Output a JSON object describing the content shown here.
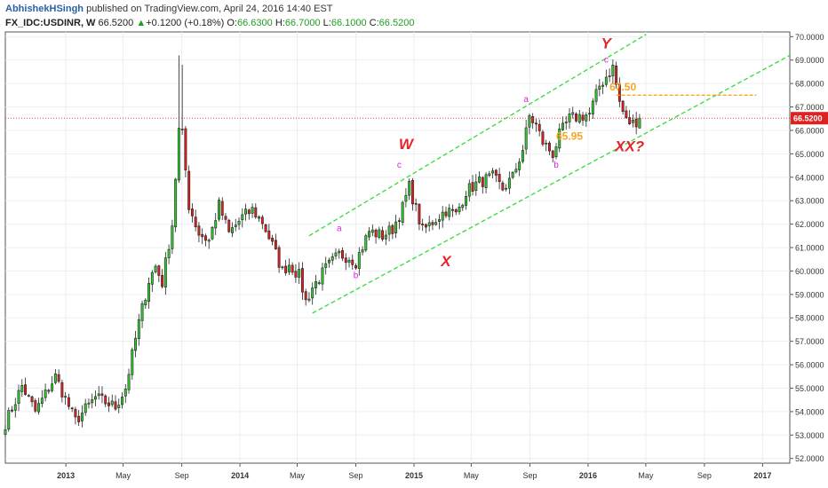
{
  "header": {
    "author": "AbhishekHSingh",
    "published": "published on TradingView.com, April 24, 2016 14:40 EST"
  },
  "ohlc_bar": {
    "symbol": "FX_IDC:USDINR, W",
    "last": "66.5200",
    "change_arrow": "▲",
    "change": "+0.1200 (+0.18%)",
    "o_label": "O:",
    "o_value": "66.6300",
    "h_label": "H:",
    "h_value": "66.7000",
    "l_label": "L:",
    "l_value": "66.1000",
    "c_label": "C:",
    "c_value": "66.5200"
  },
  "colors": {
    "up_body": "#2ecc2e",
    "down_body": "#e02020",
    "channel": "#33dd33",
    "price_line": "#cc2222",
    "annotation_red": "#e8222a",
    "annotation_magenta": "#dd22dd",
    "annotation_orange": "#f5a623",
    "last_price_badge": "#dd2222"
  },
  "chart_data": {
    "type": "candlestick",
    "symbol": "FX_IDC:USDINR",
    "interval": "W",
    "ylim": [
      51.8,
      70.2
    ],
    "xlim": [
      "2012-08-27",
      "2017-02-27"
    ],
    "y_ticks": [
      "52.0000",
      "53.0000",
      "54.0000",
      "55.0000",
      "56.0000",
      "57.0000",
      "58.0000",
      "59.0000",
      "60.0000",
      "61.0000",
      "62.0000",
      "63.0000",
      "64.0000",
      "65.0000",
      "66.0000",
      "67.0000",
      "68.0000",
      "69.0000",
      "70.0000"
    ],
    "x_ticks": [
      {
        "label": "2013",
        "date": "2013-01-01"
      },
      {
        "label": "May",
        "date": "2013-05-01"
      },
      {
        "label": "Sep",
        "date": "2013-09-01"
      },
      {
        "label": "2014",
        "date": "2014-01-01"
      },
      {
        "label": "May",
        "date": "2014-05-01"
      },
      {
        "label": "Sep",
        "date": "2014-09-01"
      },
      {
        "label": "2015",
        "date": "2015-01-01"
      },
      {
        "label": "May",
        "date": "2015-05-01"
      },
      {
        "label": "Sep",
        "date": "2015-09-01"
      },
      {
        "label": "2016",
        "date": "2016-01-01"
      },
      {
        "label": "May",
        "date": "2016-05-01"
      },
      {
        "label": "Sep",
        "date": "2016-09-01"
      },
      {
        "label": "2017",
        "date": "2017-01-01"
      }
    ],
    "last_price": 66.52,
    "last_price_label": "66.5200",
    "anchors": [
      [
        "2012-08-27",
        53.5
      ],
      [
        "2012-10-01",
        55.1
      ],
      [
        "2012-10-29",
        54.0
      ],
      [
        "2012-12-10",
        55.5
      ],
      [
        "2013-01-21",
        53.6
      ],
      [
        "2013-03-04",
        54.6
      ],
      [
        "2013-04-15",
        54.2
      ],
      [
        "2013-05-06",
        55.0
      ],
      [
        "2013-06-03",
        57.8
      ],
      [
        "2013-06-24",
        59.6
      ],
      [
        "2013-07-08",
        60.2
      ],
      [
        "2013-07-22",
        59.5
      ],
      [
        "2013-08-12",
        62.0
      ],
      [
        "2013-08-26",
        66.0
      ],
      [
        "2013-09-02",
        65.8
      ],
      [
        "2013-09-16",
        62.8
      ],
      [
        "2013-10-07",
        61.6
      ],
      [
        "2013-10-28",
        61.3
      ],
      [
        "2013-11-18",
        62.8
      ],
      [
        "2013-12-09",
        61.6
      ],
      [
        "2014-01-06",
        62.3
      ],
      [
        "2014-01-27",
        62.6
      ],
      [
        "2014-02-17",
        62.1
      ],
      [
        "2014-03-10",
        61.1
      ],
      [
        "2014-03-31",
        60.0
      ],
      [
        "2014-04-14",
        60.3
      ],
      [
        "2014-05-05",
        59.8
      ],
      [
        "2014-05-19",
        58.7
      ],
      [
        "2014-06-02",
        59.3
      ],
      [
        "2014-06-30",
        60.1
      ],
      [
        "2014-07-28",
        60.7
      ],
      [
        "2014-08-18",
        60.6
      ],
      [
        "2014-09-01",
        60.4
      ],
      [
        "2014-09-29",
        61.7
      ],
      [
        "2014-10-27",
        61.5
      ],
      [
        "2014-11-17",
        61.8
      ],
      [
        "2014-12-08",
        62.7
      ],
      [
        "2014-12-22",
        63.6
      ],
      [
        "2015-01-19",
        61.7
      ],
      [
        "2015-02-09",
        62.1
      ],
      [
        "2015-03-09",
        62.6
      ],
      [
        "2015-03-30",
        62.4
      ],
      [
        "2015-04-20",
        63.4
      ],
      [
        "2015-05-18",
        63.8
      ],
      [
        "2015-06-15",
        64.0
      ],
      [
        "2015-07-06",
        63.5
      ],
      [
        "2015-07-27",
        64.0
      ],
      [
        "2015-08-17",
        65.2
      ],
      [
        "2015-08-31",
        66.6
      ],
      [
        "2015-09-14",
        66.2
      ],
      [
        "2015-09-28",
        65.5
      ],
      [
        "2015-10-19",
        65.0
      ],
      [
        "2015-11-02",
        65.8
      ],
      [
        "2015-11-23",
        66.5
      ],
      [
        "2015-12-14",
        66.6
      ],
      [
        "2016-01-04",
        66.7
      ],
      [
        "2016-01-25",
        67.9
      ],
      [
        "2016-02-15",
        68.5
      ],
      [
        "2016-02-22",
        68.7
      ],
      [
        "2016-03-07",
        67.2
      ],
      [
        "2016-03-21",
        66.4
      ],
      [
        "2016-04-04",
        66.3
      ],
      [
        "2016-04-18",
        66.52
      ]
    ],
    "lines": [
      {
        "name": "upper-channel",
        "from": [
          "2014-05-26",
          61.5
        ],
        "to": [
          "2016-05-02",
          70.1
        ]
      },
      {
        "name": "lower-channel",
        "from": [
          "2014-06-02",
          58.2
        ],
        "to": [
          "2017-02-27",
          69.2
        ]
      },
      {
        "name": "level-67.50",
        "from": [
          "2016-02-29",
          67.5
        ],
        "to": [
          "2016-12-19",
          67.5
        ]
      }
    ],
    "annotations": [
      {
        "text": "W",
        "date": "2014-12-15",
        "price": 65.2,
        "color": "red",
        "size": "big"
      },
      {
        "text": "c",
        "date": "2014-12-01",
        "price": 64.4,
        "color": "magenta",
        "size": "small"
      },
      {
        "text": "a",
        "date": "2014-07-28",
        "price": 61.7,
        "color": "magenta",
        "size": "small"
      },
      {
        "text": "b",
        "date": "2014-09-01",
        "price": 59.7,
        "color": "magenta",
        "size": "small"
      },
      {
        "text": "X",
        "date": "2015-03-09",
        "price": 60.2,
        "color": "red",
        "size": "big"
      },
      {
        "text": "a",
        "date": "2015-08-24",
        "price": 67.2,
        "color": "magenta",
        "size": "small"
      },
      {
        "text": "b",
        "date": "2015-10-26",
        "price": 64.4,
        "color": "magenta",
        "size": "small"
      },
      {
        "text": "Y",
        "date": "2016-02-08",
        "price": 69.5,
        "color": "red",
        "size": "big"
      },
      {
        "text": "c",
        "date": "2016-02-08",
        "price": 68.9,
        "color": "magenta",
        "size": "small"
      },
      {
        "text": "67.50",
        "date": "2016-03-14",
        "price": 67.7,
        "color": "orange",
        "size": "mid"
      },
      {
        "text": "65.95",
        "date": "2015-11-23",
        "price": 65.6,
        "color": "orange",
        "size": "mid"
      },
      {
        "text": "XX?",
        "date": "2016-03-28",
        "price": 65.1,
        "color": "red",
        "size": "big"
      }
    ]
  }
}
